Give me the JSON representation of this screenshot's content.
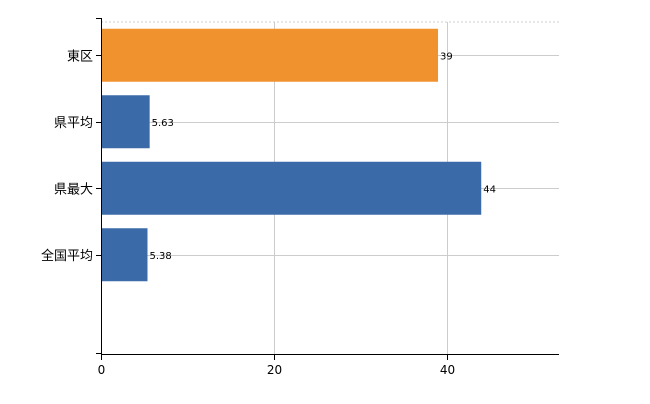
{
  "chart_data": {
    "type": "bar",
    "orientation": "horizontal",
    "categories": [
      "東区",
      "県平均",
      "県最大",
      "全国平均"
    ],
    "values": [
      39,
      5.63,
      44,
      5.38
    ],
    "value_labels": [
      "39",
      "5.63",
      "44",
      "5.38"
    ],
    "bar_colors": [
      "#f0922e",
      "#3a6aa8",
      "#3a6aa8",
      "#3a6aa8"
    ],
    "xlim": [
      0,
      53
    ],
    "x_ticks": [
      0,
      20,
      40
    ],
    "x_tick_labels": [
      "0",
      "20",
      "40"
    ],
    "grid": true,
    "title": "",
    "xlabel": "",
    "ylabel": ""
  }
}
